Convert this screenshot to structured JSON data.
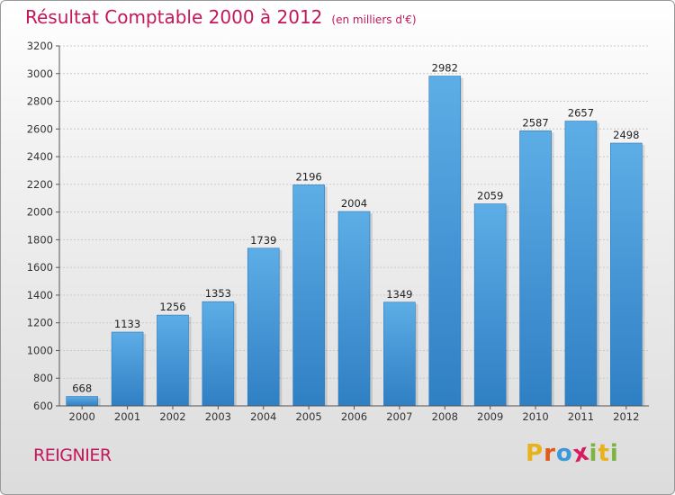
{
  "header": {
    "title": "Résultat Comptable 2000 à 2012",
    "subtitle": "(en milliers d'€)"
  },
  "footer": {
    "commune": "REIGNIER",
    "logo_letters": [
      "P",
      "r",
      "o",
      "x",
      "i",
      "t",
      "i"
    ],
    "logo_colors": [
      "#e8b21b",
      "#e05a1a",
      "#3a9ad9",
      "#d81b60",
      "#7cb342",
      "#e8b21b",
      "#7cb342"
    ]
  },
  "chart_data": {
    "type": "bar",
    "title": "Résultat Comptable 2000 à 2012",
    "subtitle": "(en milliers d'€)",
    "xlabel": "",
    "ylabel": "",
    "categories": [
      "2000",
      "2001",
      "2002",
      "2003",
      "2004",
      "2005",
      "2006",
      "2007",
      "2008",
      "2009",
      "2010",
      "2011",
      "2012"
    ],
    "values": [
      668,
      1133,
      1256,
      1353,
      1739,
      2196,
      2004,
      1349,
      2982,
      2059,
      2587,
      2657,
      2498
    ],
    "ylim": [
      600,
      3200
    ],
    "yticks": [
      600,
      800,
      1000,
      1200,
      1400,
      1600,
      1800,
      2000,
      2200,
      2400,
      2600,
      2800,
      3000,
      3200
    ],
    "grid": true,
    "bar_color": "#3d8fd6"
  }
}
